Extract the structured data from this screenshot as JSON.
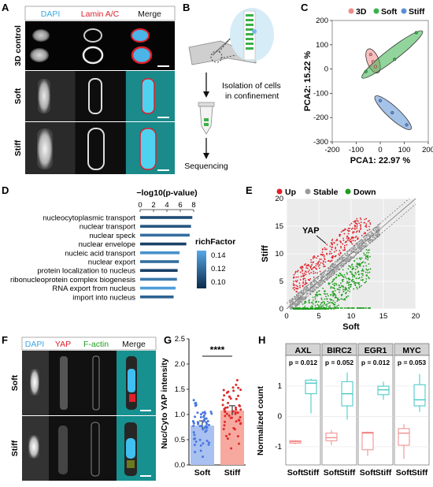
{
  "panels": {
    "A": {
      "label": "A",
      "headers": [
        "DAPI",
        "Lamin A/C",
        "Merge"
      ],
      "rows": [
        "3D control",
        "Soft",
        "Stiff"
      ],
      "colors": {
        "dapi": "#3aa8e0",
        "lamin": "#e0202a"
      }
    },
    "B": {
      "label": "B",
      "step1": "Isolation of cells",
      "step2": "in confinement",
      "step3": "Sequencing"
    },
    "C": {
      "label": "C",
      "legend": [
        "3D",
        "Soft",
        "Stiff"
      ],
      "legend_colors": [
        "#f08a8a",
        "#38b24a",
        "#5b8fd6"
      ],
      "xlabel": "PCA1: 22.97 %",
      "ylabel": "PCA2: 15.22 %",
      "xticks": [
        "-200",
        "-100",
        "0",
        "100",
        "200"
      ],
      "yticks": [
        "-300",
        "-200",
        "-100",
        "0",
        "100",
        "200"
      ]
    },
    "D": {
      "label": "D",
      "xlabel": "−log10(p-value)",
      "xticks": [
        "0",
        "2",
        "4",
        "6",
        "8"
      ],
      "legend_title": "richFactor",
      "legend_ticks": [
        "0.14",
        "0.12",
        "0.10"
      ]
    },
    "E": {
      "label": "E",
      "legend": [
        "Up",
        "Stable",
        "Down"
      ],
      "legend_colors": [
        "#e0202a",
        "#9a9a9a",
        "#1f9d1f"
      ],
      "xlabel": "Soft",
      "ylabel": "Stiff",
      "annotation": "YAP",
      "xticks": [
        "0",
        "5",
        "10",
        "15",
        "20"
      ],
      "yticks": [
        "0",
        "5",
        "10",
        "15",
        "20"
      ]
    },
    "F": {
      "label": "F",
      "headers": [
        "DAPI",
        "YAP",
        "F-actin",
        "Merge"
      ],
      "header_colors": [
        "#3aa8e0",
        "#e0202a",
        "#1f9d1f",
        "#111111"
      ],
      "rows": [
        "Soft",
        "Stiff"
      ]
    },
    "G": {
      "label": "G",
      "ylabel": "Nuc/Cyto YAP intensity",
      "significance": "****",
      "yticks": [
        "0.0",
        "0.5",
        "1.0",
        "1.5",
        "2.0",
        "2.5"
      ]
    },
    "H": {
      "label": "H",
      "ylabel": "Normalized count",
      "yticks": [
        "1",
        "0",
        "-1"
      ],
      "xtick_labels": [
        "Soft",
        "Stiff"
      ],
      "group_colors": {
        "Soft": "#f08a8a",
        "Stiff": "#3fc4c4"
      }
    }
  },
  "chart_data": [
    {
      "type": "bar",
      "panel": "D",
      "categories": [
        "nucleocytoplasmic transport",
        "nuclear transport",
        "nuclear speck",
        "nuclear envelope",
        "nucleic acid transport",
        "nuclear export",
        "protein localization to nucleus",
        "ribonucleoprotein complex biogenesis",
        "RNA export from nucleus",
        "import into nucleus"
      ],
      "values": [
        7.8,
        7.6,
        7.4,
        6.9,
        5.9,
        5.8,
        5.6,
        5.5,
        5.3,
        5.0
      ],
      "richFactor": [
        0.105,
        0.11,
        0.12,
        0.1,
        0.135,
        0.12,
        0.1,
        0.125,
        0.14,
        0.115
      ],
      "xlim": [
        0,
        8
      ],
      "orientation": "horizontal"
    },
    {
      "type": "scatter",
      "panel": "C",
      "xlim": [
        -200,
        200
      ],
      "ylim": [
        -300,
        200
      ],
      "series": [
        {
          "name": "3D",
          "x": [
            -40,
            -30,
            -20
          ],
          "y": [
            60,
            30,
            10
          ]
        },
        {
          "name": "Soft",
          "x": [
            -60,
            60,
            150
          ],
          "y": [
            -10,
            40,
            150
          ]
        },
        {
          "name": "Stiff",
          "x": [
            0,
            50,
            110
          ],
          "y": [
            -130,
            -180,
            -230
          ]
        }
      ]
    },
    {
      "type": "bar",
      "panel": "G",
      "categories": [
        "Soft",
        "Stiff"
      ],
      "values": [
        0.78,
        1.08
      ],
      "ylim": [
        0,
        2.5
      ]
    },
    {
      "type": "box",
      "panel": "H",
      "ylim": [
        -1.6,
        1.6
      ],
      "genes": [
        {
          "name": "AXL",
          "p": "p = 0.012",
          "Soft": {
            "min": -0.92,
            "q1": -0.88,
            "med": -0.83,
            "q3": -0.8,
            "max": -0.78
          },
          "Stiff": {
            "min": 0.1,
            "q1": 0.75,
            "med": 1.1,
            "q3": 1.2,
            "max": 1.25
          }
        },
        {
          "name": "BIRC2",
          "p": "p = 0.052",
          "Soft": {
            "min": -0.95,
            "q1": -0.8,
            "med": -0.7,
            "q3": -0.55,
            "max": -0.45
          },
          "Stiff": {
            "min": -0.1,
            "q1": 0.35,
            "med": 0.75,
            "q3": 1.15,
            "max": 1.45
          }
        },
        {
          "name": "EGR1",
          "p": "p = 0.012",
          "Soft": {
            "min": -1.3,
            "q1": -1.1,
            "med": -0.55,
            "q3": -0.52,
            "max": -0.5
          },
          "Stiff": {
            "min": 0.55,
            "q1": 0.72,
            "med": 0.88,
            "q3": 1.0,
            "max": 1.15
          }
        },
        {
          "name": "MYC",
          "p": "p = 0.053",
          "Soft": {
            "min": -1.4,
            "q1": -0.95,
            "med": -0.55,
            "q3": -0.4,
            "max": -0.25
          },
          "Stiff": {
            "min": 0.15,
            "q1": 0.35,
            "med": 0.55,
            "q3": 1.05,
            "max": 1.4
          }
        }
      ]
    }
  ]
}
